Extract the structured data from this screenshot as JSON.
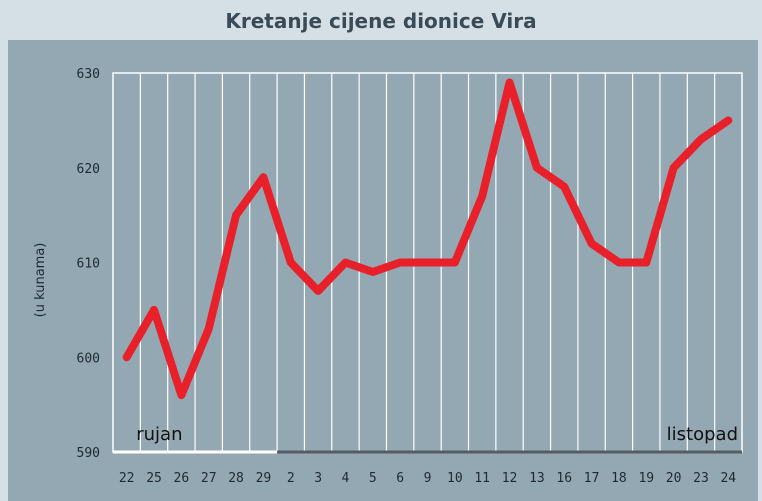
{
  "chart_data": {
    "type": "line",
    "title": "Kretanje cijene dionice Vira",
    "ylabel": "(u kunama)",
    "xlabel": "",
    "ylim": [
      590,
      630
    ],
    "yticks": [
      590,
      600,
      610,
      620,
      630
    ],
    "grid": true,
    "categories": [
      "22",
      "25",
      "26",
      "27",
      "28",
      "29",
      "2",
      "3",
      "4",
      "5",
      "6",
      "9",
      "10",
      "11",
      "12",
      "13",
      "16",
      "17",
      "18",
      "19",
      "20",
      "23",
      "24"
    ],
    "series": [
      {
        "values": [
          600,
          605,
          596,
          603,
          615,
          619,
          610,
          607,
          610,
          609,
          610,
          610,
          610,
          617,
          629,
          620,
          618,
          612,
          610,
          610,
          620,
          623,
          625
        ]
      }
    ],
    "month_labels": [
      {
        "text": "rujan",
        "first_category_index": 0,
        "last_category_index": 5
      },
      {
        "text": "listopad",
        "first_category_index": 6,
        "last_category_index": 22
      }
    ],
    "colors": {
      "line": "#e8202a",
      "plot_bg": "#94a8b3",
      "grid": "#ffffff",
      "page_bg": "#d5e0e6"
    }
  }
}
